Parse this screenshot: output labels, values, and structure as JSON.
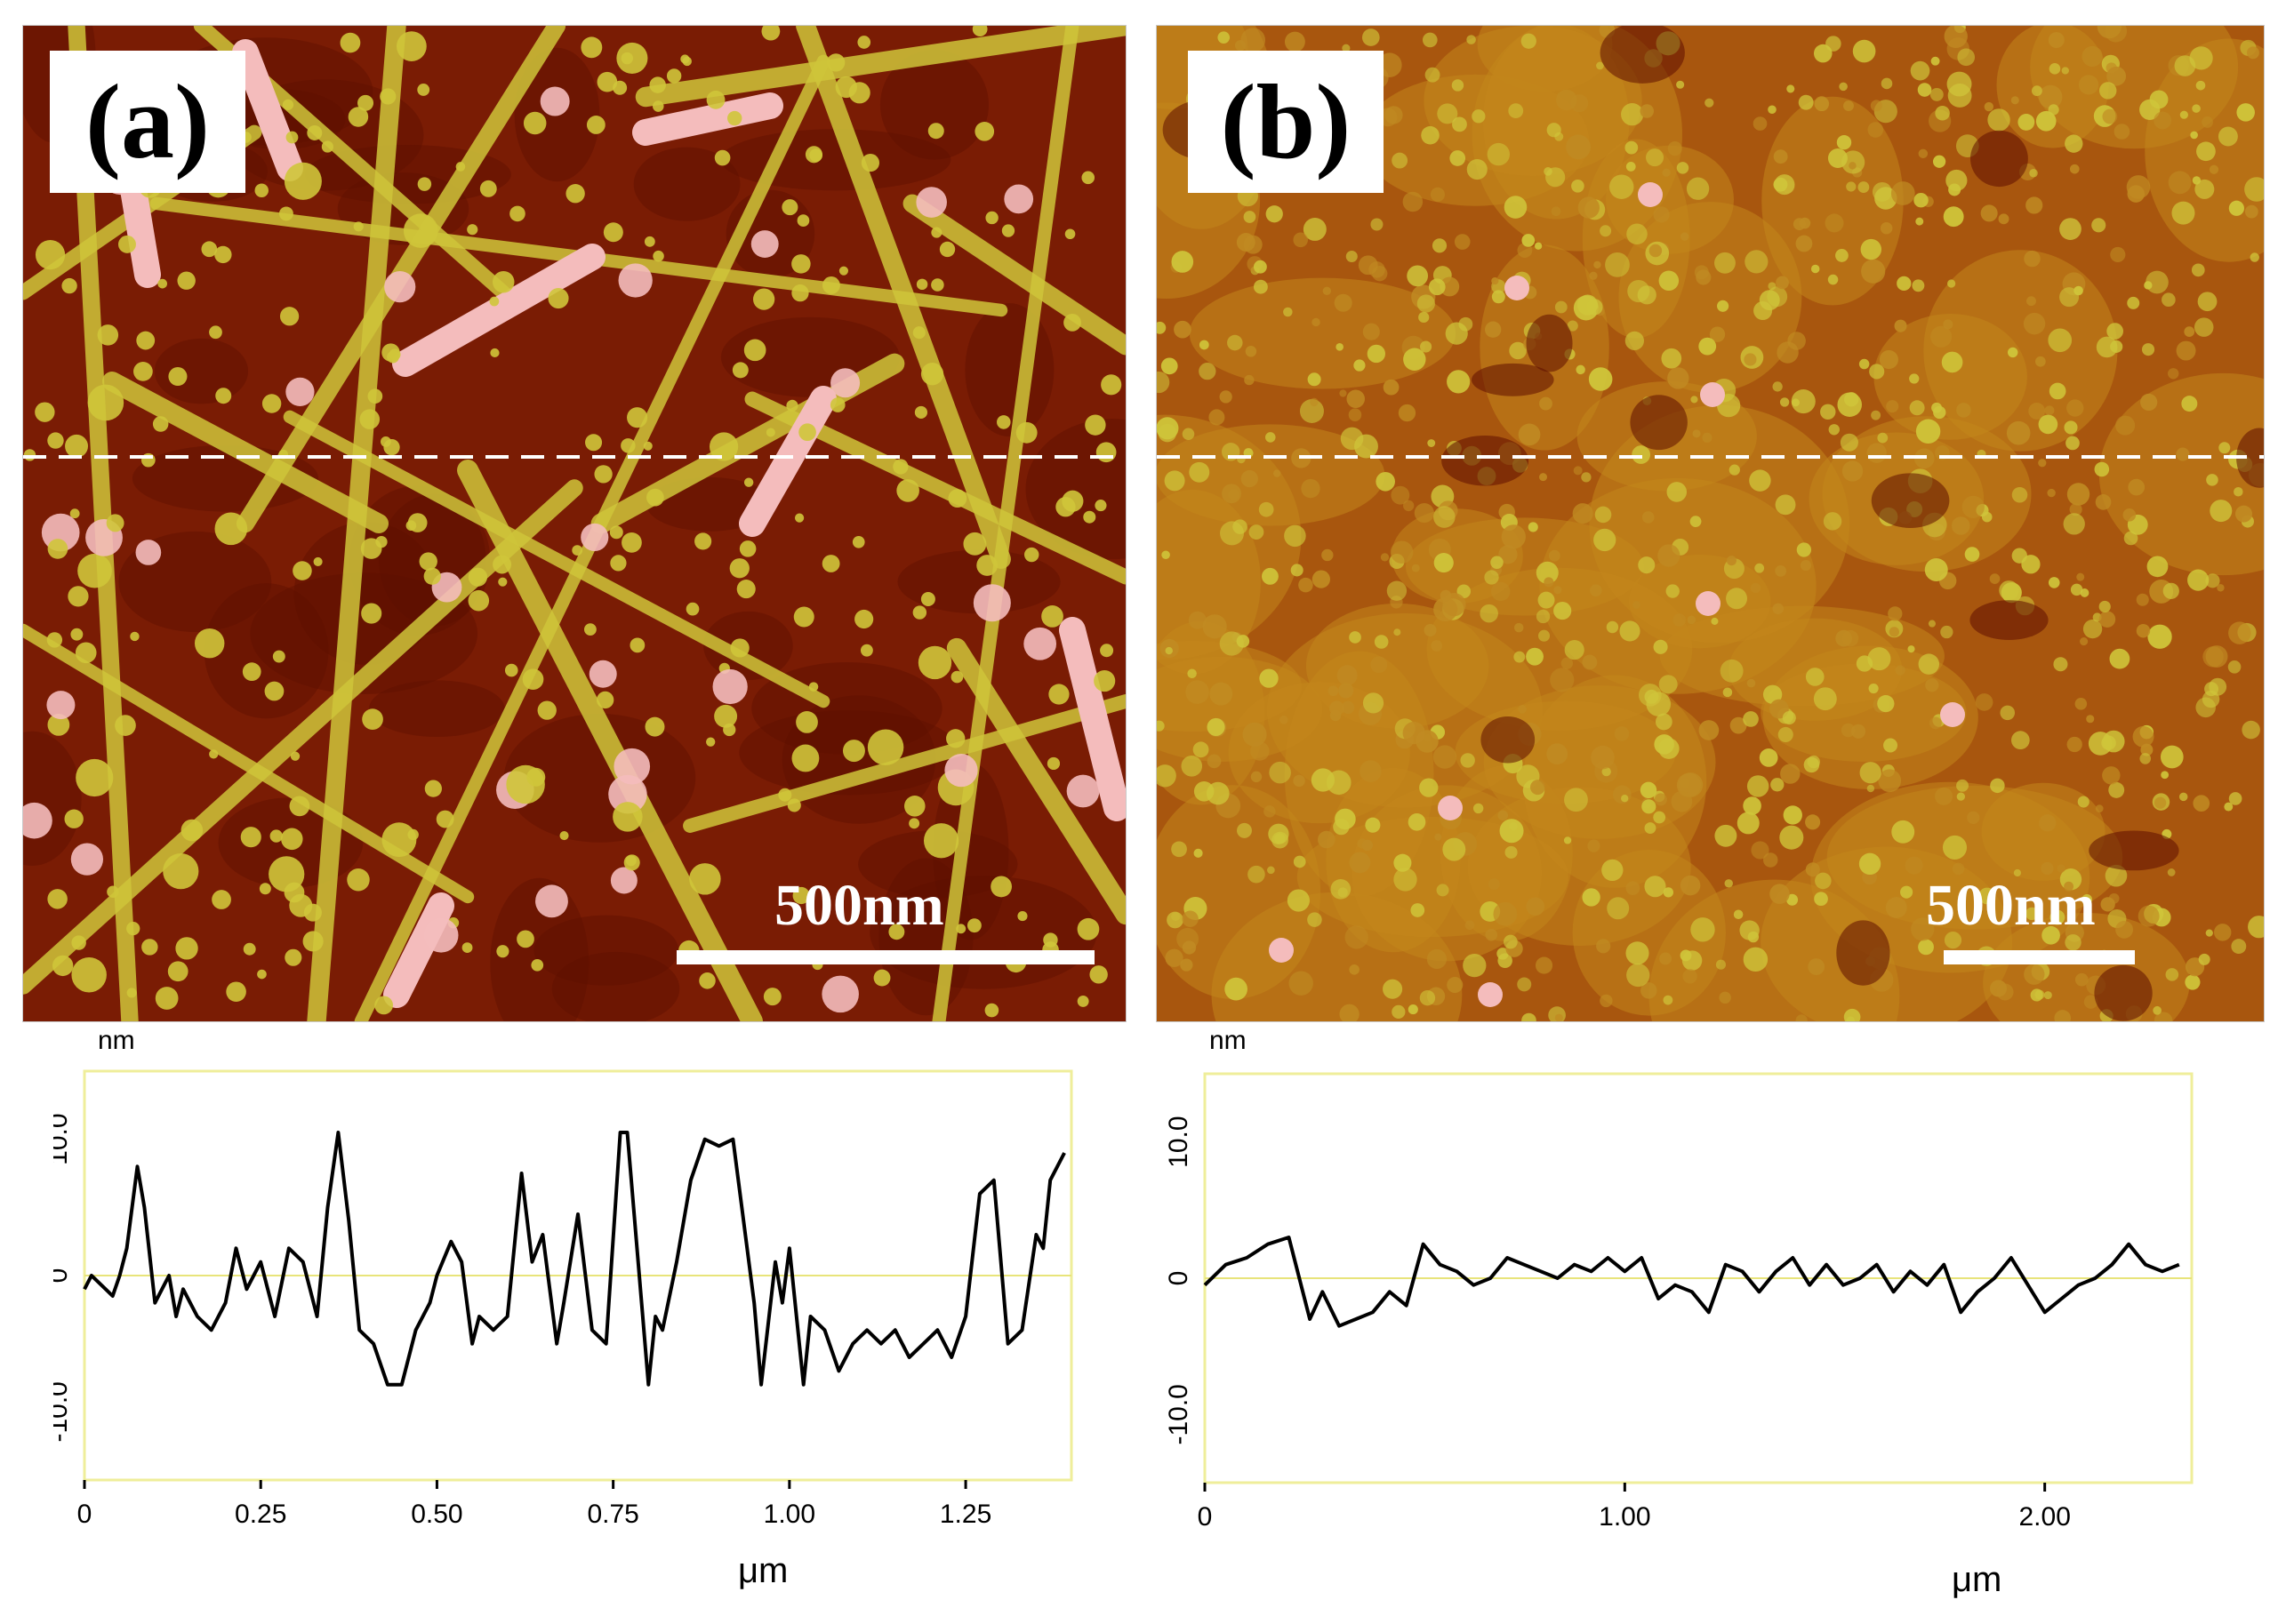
{
  "panels": [
    {
      "label": "(a)",
      "scale_bar_text": "500nm",
      "profile": {
        "y_unit": "nm",
        "x_unit": "μm"
      }
    },
    {
      "label": "(b)",
      "scale_bar_text": "500nm",
      "profile": {
        "y_unit": "nm",
        "x_unit": "μm"
      }
    }
  ],
  "colors": {
    "afm_dark": "#5e0f00",
    "afm_mid": "#a23c08",
    "afm_bright": "#cfc53a",
    "afm_peak": "#f4bcbc",
    "profile_line": "#000000",
    "plot_frame": "#efee9a",
    "zero_line": "#e8e47a"
  },
  "chart_data": [
    {
      "type": "line",
      "title": "",
      "xlabel": "μm",
      "ylabel": "nm",
      "xlim": [
        0,
        1.4
      ],
      "ylim": [
        -15,
        15
      ],
      "x_ticks": [
        "0",
        "0.25",
        "0.50",
        "0.75",
        "1.00",
        "1.25"
      ],
      "x_tick_values": [
        0,
        0.25,
        0.5,
        0.75,
        1.0,
        1.25
      ],
      "y_ticks": [
        "10.0",
        "0",
        "-10.0"
      ],
      "y_tick_values": [
        10,
        0,
        -10
      ],
      "zero_line": true,
      "series": [
        {
          "x": [
            0,
            0.01,
            0.02,
            0.03,
            0.04,
            0.05,
            0.06,
            0.075,
            0.085,
            0.1,
            0.11,
            0.12,
            0.13,
            0.14,
            0.15,
            0.16,
            0.18,
            0.2,
            0.215,
            0.23,
            0.25,
            0.27,
            0.29,
            0.31,
            0.33,
            0.345,
            0.36,
            0.375,
            0.39,
            0.41,
            0.43,
            0.45,
            0.47,
            0.49,
            0.5,
            0.52,
            0.535,
            0.55,
            0.56,
            0.58,
            0.6,
            0.62,
            0.635,
            0.65,
            0.67,
            0.68,
            0.7,
            0.72,
            0.74,
            0.76,
            0.77,
            0.8,
            0.81,
            0.82,
            0.84,
            0.86,
            0.88,
            0.9,
            0.92,
            0.95,
            0.96,
            0.98,
            0.99,
            1.0,
            1.01,
            1.02,
            1.03,
            1.05,
            1.07,
            1.09,
            1.11,
            1.13,
            1.15,
            1.17,
            1.19,
            1.21,
            1.23,
            1.25,
            1.27,
            1.29,
            1.31,
            1.33,
            1.35,
            1.36,
            1.37,
            1.39
          ],
          "y": [
            -1,
            0,
            -0.5,
            -1,
            -1.5,
            0,
            2,
            8,
            5,
            -2,
            -1,
            0,
            -3,
            -1,
            -2,
            -3,
            -4,
            -2,
            2,
            -1,
            1,
            -3,
            2,
            1,
            -3,
            5,
            10.5,
            4,
            -4,
            -5,
            -8,
            -8,
            -4,
            -2,
            0,
            2.5,
            1,
            -5,
            -3,
            -4,
            -3,
            7.5,
            1,
            3,
            -5,
            -2,
            4.5,
            -4,
            -5,
            10.5,
            10.5,
            -8,
            -3,
            -4,
            1,
            7,
            10,
            9.5,
            10,
            -2,
            -8,
            1,
            -2,
            2,
            -3,
            -8,
            -3,
            -4,
            -7,
            -5,
            -4,
            -5,
            -4,
            -6,
            -5,
            -4,
            -6,
            -3,
            6,
            7,
            -5,
            -4,
            3,
            2,
            7,
            9
          ]
        }
      ]
    },
    {
      "type": "line",
      "title": "",
      "xlabel": "μm",
      "ylabel": "nm",
      "xlim": [
        0,
        2.35
      ],
      "ylim": [
        -15,
        15
      ],
      "x_ticks": [
        "0",
        "1.00",
        "2.00"
      ],
      "x_tick_values": [
        0,
        1.0,
        2.0
      ],
      "y_ticks": [
        "10.0",
        "0",
        "-10.0"
      ],
      "y_tick_values": [
        10,
        0,
        -10
      ],
      "zero_line": true,
      "series": [
        {
          "x": [
            0,
            0.05,
            0.1,
            0.15,
            0.2,
            0.25,
            0.28,
            0.32,
            0.36,
            0.4,
            0.44,
            0.48,
            0.52,
            0.56,
            0.6,
            0.64,
            0.68,
            0.72,
            0.76,
            0.8,
            0.84,
            0.88,
            0.92,
            0.96,
            1.0,
            1.04,
            1.08,
            1.12,
            1.16,
            1.2,
            1.24,
            1.28,
            1.32,
            1.36,
            1.4,
            1.44,
            1.48,
            1.52,
            1.56,
            1.6,
            1.64,
            1.68,
            1.72,
            1.76,
            1.8,
            1.84,
            1.88,
            1.92,
            1.96,
            2.0,
            2.04,
            2.08,
            2.12,
            2.16,
            2.2,
            2.24,
            2.28,
            2.32
          ],
          "y": [
            -0.5,
            1,
            1.5,
            2.5,
            3,
            -3,
            -1,
            -3.5,
            -3,
            -2.5,
            -1,
            -2,
            2.5,
            1,
            0.5,
            -0.5,
            0,
            1.5,
            1,
            0.5,
            0,
            1,
            0.5,
            1.5,
            0.5,
            1.5,
            -1.5,
            -0.5,
            -1,
            -2.5,
            1,
            0.5,
            -1,
            0.5,
            1.5,
            -0.5,
            1,
            -0.5,
            0,
            1,
            -1,
            0.5,
            -0.5,
            1,
            -2.5,
            -1,
            0,
            1.5,
            -0.5,
            -2.5,
            -1.5,
            -0.5,
            0,
            1,
            2.5,
            1,
            0.5,
            1
          ]
        }
      ]
    }
  ]
}
